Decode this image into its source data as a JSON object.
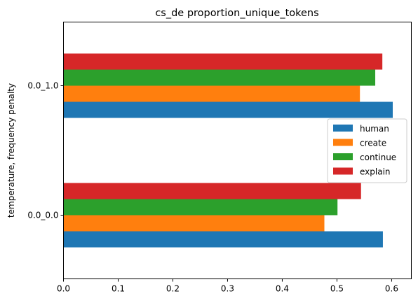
{
  "chart_data": {
    "type": "bar",
    "orientation": "horizontal",
    "title": "cs_de proportion_unique_tokens",
    "xlabel": "",
    "ylabel": "temperature, frequency penalty",
    "categories": [
      "0.0_0.0",
      "0.0_1.0"
    ],
    "xlim": [
      0,
      0.636
    ],
    "x_ticks": [
      "0.0",
      "0.1",
      "0.2",
      "0.3",
      "0.4",
      "0.5",
      "0.6"
    ],
    "grid": false,
    "legend_position": "center-right",
    "series": [
      {
        "name": "human",
        "color": "#1f77b4",
        "values": [
          0.584,
          0.602
        ]
      },
      {
        "name": "create",
        "color": "#ff7f0e",
        "values": [
          0.477,
          0.542
        ]
      },
      {
        "name": "continue",
        "color": "#2ca02c",
        "values": [
          0.501,
          0.57
        ]
      },
      {
        "name": "explain",
        "color": "#d62728",
        "values": [
          0.544,
          0.583
        ]
      }
    ]
  }
}
